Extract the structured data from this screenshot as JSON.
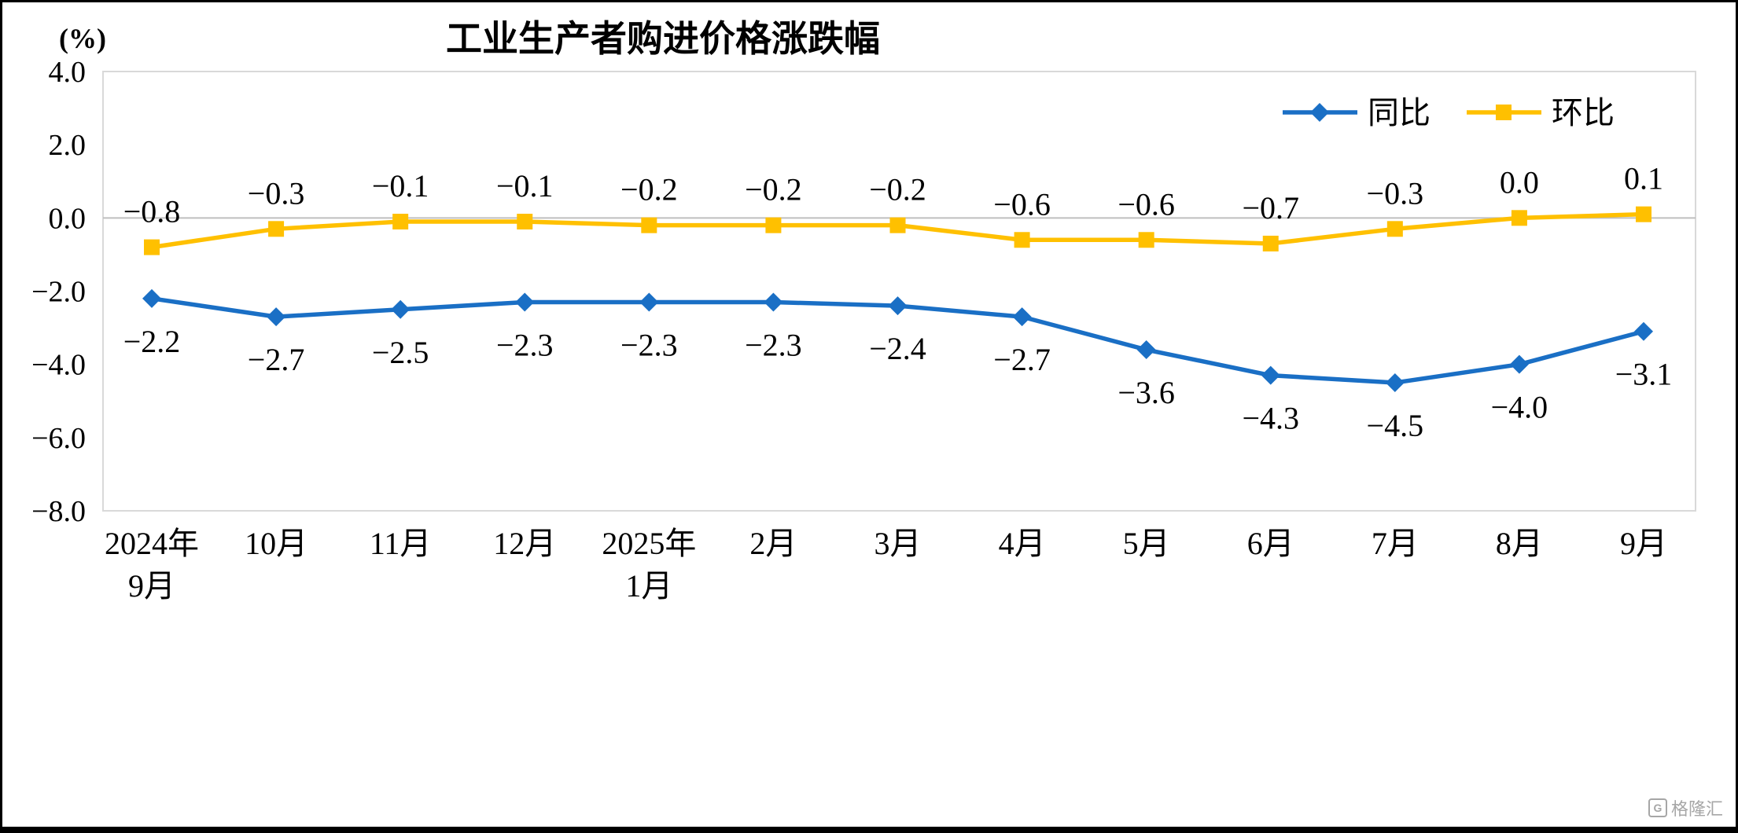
{
  "chart_data": {
    "type": "line",
    "title": "工业生产者购进价格涨跌幅",
    "unit_label": "(%)",
    "categories": [
      "2024年\n9月",
      "10月",
      "11月",
      "12月",
      "2025年\n1月",
      "2月",
      "3月",
      "4月",
      "5月",
      "6月",
      "7月",
      "8月",
      "9月"
    ],
    "series": [
      {
        "name": "同比",
        "color": "#1A6FC5",
        "marker": "diamond",
        "label_position": "below",
        "values": [
          -2.2,
          -2.7,
          -2.5,
          -2.3,
          -2.3,
          -2.3,
          -2.4,
          -2.7,
          -3.6,
          -4.3,
          -4.5,
          -4.0,
          -3.1
        ]
      },
      {
        "name": "环比",
        "color": "#FFC000",
        "marker": "square",
        "label_position": "above",
        "values": [
          -0.8,
          -0.3,
          -0.1,
          -0.1,
          -0.2,
          -0.2,
          -0.2,
          -0.6,
          -0.6,
          -0.7,
          -0.3,
          0.0,
          0.1
        ]
      }
    ],
    "ylim": [
      -8.0,
      4.0
    ],
    "yticks": [
      4.0,
      2.0,
      0.0,
      -2.0,
      -4.0,
      -6.0,
      -8.0
    ],
    "grid": false,
    "legend_position": "top-right",
    "label_decimals": 1,
    "axis_line_color": "#BFBFBF",
    "plot_border_color": "#D9D9D9",
    "text_color": "#000000"
  },
  "watermark": {
    "logo_letter": "G",
    "text": "格隆汇"
  }
}
